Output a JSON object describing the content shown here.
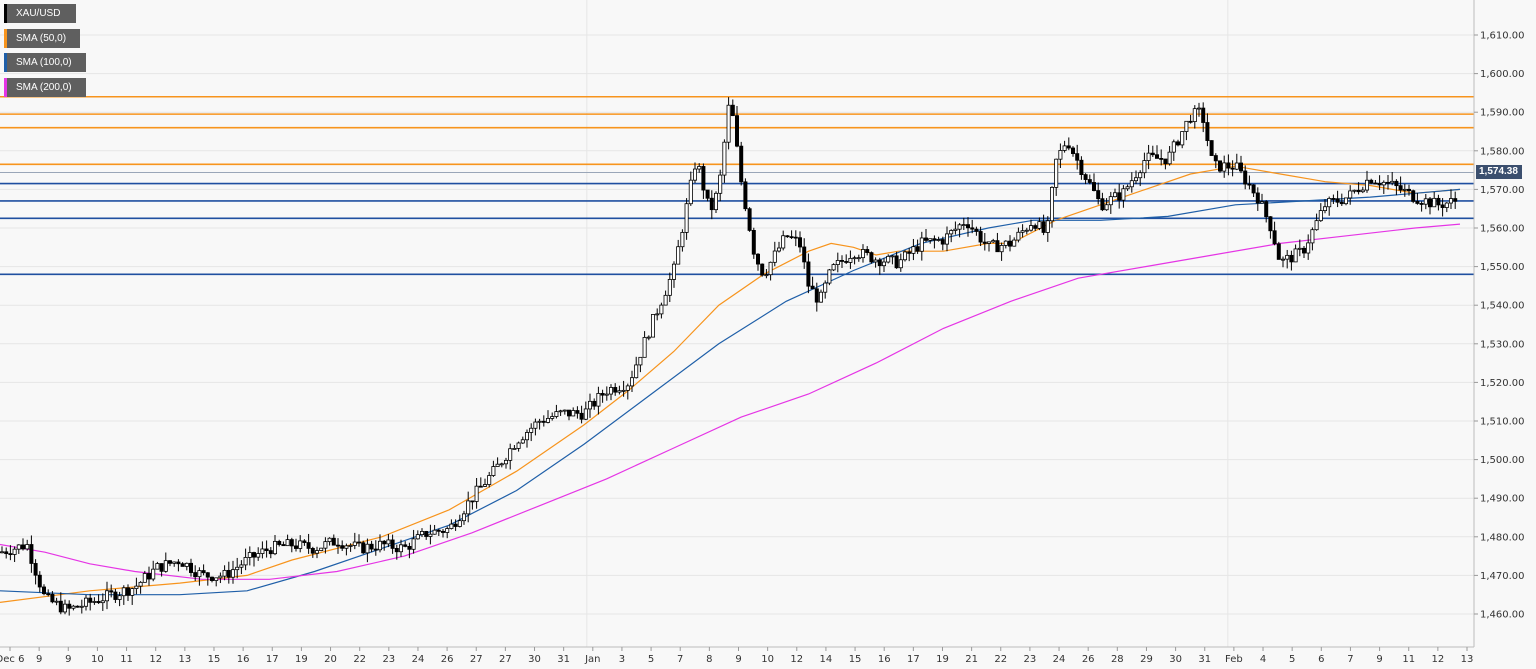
{
  "chart_data": {
    "type": "candlestick",
    "symbol": "XAU/USD",
    "legend": [
      {
        "label": "XAU/USD",
        "color": "#000000"
      },
      {
        "label": "SMA (50,0)",
        "color": "#f7941d"
      },
      {
        "label": "SMA (100,0)",
        "color": "#1f5fa8"
      },
      {
        "label": "SMA (200,0)",
        "color": "#e535e5"
      }
    ],
    "last_price": "1,574.38",
    "last_price_value": 1574.38,
    "ylim": [
      1455,
      1618
    ],
    "y_ticks": [
      {
        "v": 1460,
        "t": "1,460.00"
      },
      {
        "v": 1470,
        "t": "1,470.00"
      },
      {
        "v": 1480,
        "t": "1,480.00"
      },
      {
        "v": 1490,
        "t": "1,490.00"
      },
      {
        "v": 1500,
        "t": "1,500.00"
      },
      {
        "v": 1510,
        "t": "1,510.00"
      },
      {
        "v": 1520,
        "t": "1,520.00"
      },
      {
        "v": 1530,
        "t": "1,530.00"
      },
      {
        "v": 1540,
        "t": "1,540.00"
      },
      {
        "v": 1550,
        "t": "1,550.00"
      },
      {
        "v": 1560,
        "t": "1,560.00"
      },
      {
        "v": 1570,
        "t": "1,570.00"
      },
      {
        "v": 1580,
        "t": "1,580.00"
      },
      {
        "v": 1590,
        "t": "1,590.00"
      },
      {
        "v": 1600,
        "t": "1,600.00"
      },
      {
        "v": 1610,
        "t": "1,610.00"
      }
    ],
    "x_ticks": [
      "Dec 6",
      "9",
      "9",
      "10",
      "11",
      "12",
      "13",
      "15",
      "16",
      "17",
      "19",
      "20",
      "22",
      "23",
      "24",
      "26",
      "27",
      "27",
      "30",
      "31",
      "Jan",
      "3",
      "5",
      "7",
      "8",
      "9",
      "10",
      "12",
      "14",
      "15",
      "16",
      "17",
      "19",
      "21",
      "22",
      "23",
      "24",
      "26",
      "28",
      "29",
      "30",
      "31",
      "Feb",
      "4",
      "5",
      "6",
      "7",
      "9",
      "11",
      "12",
      "13"
    ],
    "resistance_levels": [
      1594,
      1589.5,
      1586,
      1576.5
    ],
    "support_levels": [
      1571.5,
      1567,
      1562.5,
      1548
    ],
    "close_path": [
      [
        0,
        1476
      ],
      [
        1.2,
        1478
      ],
      [
        2,
        1464
      ],
      [
        3,
        1461
      ],
      [
        4,
        1463
      ],
      [
        5,
        1465
      ],
      [
        6,
        1467
      ],
      [
        7,
        1472
      ],
      [
        8,
        1474
      ],
      [
        9,
        1470
      ],
      [
        10,
        1470
      ],
      [
        11,
        1474
      ],
      [
        12,
        1477
      ],
      [
        13,
        1478
      ],
      [
        14,
        1477
      ],
      [
        15,
        1479
      ],
      [
        16,
        1477
      ],
      [
        17,
        1478
      ],
      [
        18,
        1477
      ],
      [
        19,
        1481
      ],
      [
        20,
        1482
      ],
      [
        21,
        1490
      ],
      [
        22,
        1497
      ],
      [
        23,
        1505
      ],
      [
        24,
        1510
      ],
      [
        25,
        1512
      ],
      [
        26,
        1512
      ],
      [
        27,
        1518
      ],
      [
        28,
        1520
      ],
      [
        29,
        1535
      ],
      [
        30,
        1549
      ],
      [
        31,
        1578
      ],
      [
        31.6,
        1564
      ],
      [
        32,
        1570
      ],
      [
        32.5,
        1594
      ],
      [
        33,
        1572
      ],
      [
        33.6,
        1553
      ],
      [
        34,
        1548
      ],
      [
        35,
        1558
      ],
      [
        35.6,
        1556
      ],
      [
        36,
        1545
      ],
      [
        36.5,
        1541
      ],
      [
        37,
        1549
      ],
      [
        38,
        1554
      ],
      [
        39,
        1552
      ],
      [
        40,
        1551
      ],
      [
        41,
        1556
      ],
      [
        42,
        1557
      ],
      [
        43,
        1562
      ],
      [
        44,
        1555
      ],
      [
        45,
        1556
      ],
      [
        46,
        1562
      ],
      [
        46.6,
        1558
      ],
      [
        47,
        1577
      ],
      [
        47.5,
        1583
      ],
      [
        48,
        1577
      ],
      [
        49,
        1566
      ],
      [
        50,
        1569
      ],
      [
        51,
        1578
      ],
      [
        52,
        1578
      ],
      [
        53,
        1589
      ],
      [
        53.5,
        1590
      ],
      [
        54,
        1576
      ],
      [
        55,
        1576
      ],
      [
        56,
        1568
      ],
      [
        56.6,
        1560
      ],
      [
        57,
        1551
      ],
      [
        58,
        1554
      ],
      [
        59,
        1566
      ],
      [
        60,
        1568
      ],
      [
        61,
        1573
      ],
      [
        62,
        1571
      ],
      [
        63,
        1568
      ],
      [
        64,
        1566
      ],
      [
        64.8,
        1567
      ],
      [
        65,
        1574
      ]
    ],
    "series": [
      {
        "name": "SMA (50,0)",
        "color": "#f7941d",
        "points": [
          [
            0,
            1463
          ],
          [
            4,
            1466
          ],
          [
            8,
            1468
          ],
          [
            11,
            1470
          ],
          [
            13,
            1474
          ],
          [
            17,
            1480
          ],
          [
            20,
            1487
          ],
          [
            23,
            1497
          ],
          [
            26,
            1509
          ],
          [
            28,
            1518
          ],
          [
            30,
            1528
          ],
          [
            32,
            1540
          ],
          [
            34,
            1548
          ],
          [
            36,
            1554
          ],
          [
            37,
            1556
          ],
          [
            38,
            1555
          ],
          [
            39,
            1553
          ],
          [
            40,
            1554
          ],
          [
            42,
            1554
          ],
          [
            44,
            1556
          ],
          [
            45,
            1556
          ],
          [
            47,
            1562
          ],
          [
            49,
            1566
          ],
          [
            51,
            1570
          ],
          [
            53,
            1574
          ],
          [
            55,
            1576
          ],
          [
            57,
            1574
          ],
          [
            59,
            1572
          ],
          [
            61,
            1571
          ],
          [
            63,
            1569
          ],
          [
            65,
            1570
          ]
        ]
      },
      {
        "name": "SMA (100,0)",
        "color": "#1f5fa8",
        "points": [
          [
            0,
            1466
          ],
          [
            4,
            1465
          ],
          [
            8,
            1465
          ],
          [
            11,
            1466
          ],
          [
            14,
            1471
          ],
          [
            17,
            1477
          ],
          [
            20,
            1483
          ],
          [
            23,
            1492
          ],
          [
            26,
            1504
          ],
          [
            29,
            1517
          ],
          [
            32,
            1530
          ],
          [
            35,
            1541
          ],
          [
            38,
            1549
          ],
          [
            41,
            1556
          ],
          [
            44,
            1560
          ],
          [
            46,
            1562
          ],
          [
            49,
            1562
          ],
          [
            52,
            1563
          ],
          [
            55,
            1566
          ],
          [
            58,
            1567
          ],
          [
            61,
            1568
          ],
          [
            63,
            1569
          ],
          [
            65,
            1570
          ]
        ]
      },
      {
        "name": "SMA (200,0)",
        "color": "#e535e5",
        "points": [
          [
            0,
            1478
          ],
          [
            2,
            1476
          ],
          [
            4,
            1473
          ],
          [
            6,
            1471
          ],
          [
            9,
            1469
          ],
          [
            12,
            1469
          ],
          [
            15,
            1471
          ],
          [
            18,
            1475
          ],
          [
            21,
            1481
          ],
          [
            24,
            1488
          ],
          [
            27,
            1495
          ],
          [
            30,
            1503
          ],
          [
            33,
            1511
          ],
          [
            36,
            1517
          ],
          [
            39,
            1525
          ],
          [
            42,
            1534
          ],
          [
            45,
            1541
          ],
          [
            48,
            1547
          ],
          [
            51,
            1550
          ],
          [
            54,
            1553
          ],
          [
            57,
            1556
          ],
          [
            60,
            1558
          ],
          [
            63,
            1560
          ],
          [
            65,
            1561
          ]
        ]
      }
    ]
  }
}
